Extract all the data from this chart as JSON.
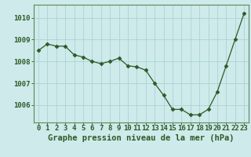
{
  "x": [
    0,
    1,
    2,
    3,
    4,
    5,
    6,
    7,
    8,
    9,
    10,
    11,
    12,
    13,
    14,
    15,
    16,
    17,
    18,
    19,
    20,
    21,
    22,
    23
  ],
  "y": [
    1008.5,
    1008.8,
    1008.7,
    1008.7,
    1008.3,
    1008.2,
    1008.0,
    1007.9,
    1008.0,
    1008.15,
    1007.8,
    1007.75,
    1007.6,
    1007.0,
    1006.45,
    1005.8,
    1005.8,
    1005.55,
    1005.55,
    1005.8,
    1006.6,
    1007.8,
    1009.0,
    1010.2
  ],
  "line_color": "#2d5a27",
  "marker": "D",
  "marker_size": 2.5,
  "bg_color": "#ceeaea",
  "grid_color": "#aad4d4",
  "axis_color": "#2d5a27",
  "border_color": "#5a8a5a",
  "xlabel": "Graphe pression niveau de la mer (hPa)",
  "xlabel_fontsize": 7.5,
  "tick_fontsize": 6.5,
  "ylim": [
    1005.2,
    1010.6
  ],
  "yticks": [
    1006,
    1007,
    1008,
    1009,
    1010
  ],
  "xticks": [
    0,
    1,
    2,
    3,
    4,
    5,
    6,
    7,
    8,
    9,
    10,
    11,
    12,
    13,
    14,
    15,
    16,
    17,
    18,
    19,
    20,
    21,
    22,
    23
  ]
}
